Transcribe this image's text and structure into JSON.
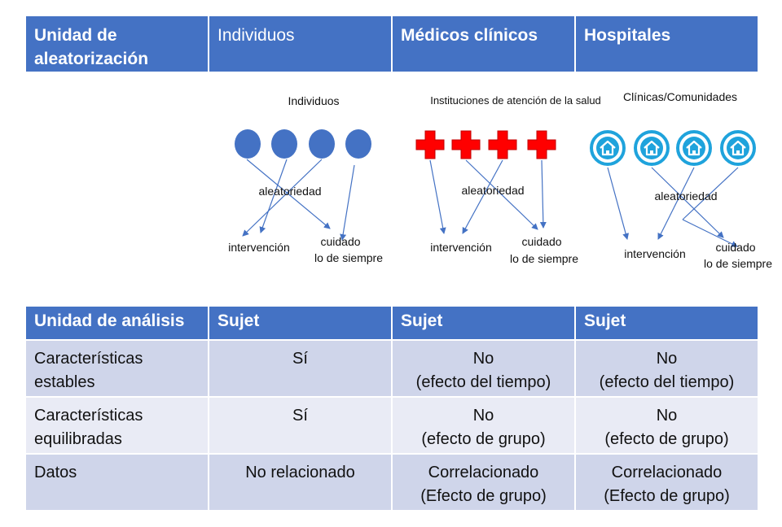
{
  "top_header": {
    "col1_lines": [
      "Unidad de",
      "aleatorización"
    ],
    "col2": "Individuos",
    "col3": "Médicos clínicos",
    "col4": "Hospitales"
  },
  "diagram": {
    "panel1": {
      "title": "Individuos",
      "randomization": "aleatoriedad",
      "intervention": "intervención",
      "usual_line1": "cuidado",
      "usual_line2": "lo de siempre"
    },
    "panel2": {
      "title": "Instituciones de atención de la salud",
      "randomization": "aleatoriedad",
      "intervention": "intervención",
      "usual_line1": "cuidado",
      "usual_line2": "lo de siempre"
    },
    "panel3": {
      "title": "Clínicas/Comunidades",
      "randomization": "aleatoriedad",
      "intervention": "intervención",
      "usual_line1": "cuidado",
      "usual_line2": "lo de siempre"
    },
    "colors": {
      "circle": "#4472c4",
      "cross": "#ff0000",
      "home": "#1fa3dc",
      "arrow": "#4472c4"
    },
    "icons": [
      "person-circle-icon",
      "red-cross-icon",
      "home-icon"
    ]
  },
  "analysis_table": {
    "headers": [
      "Unidad de análisis",
      "Sujet",
      "Sujet",
      "Sujet"
    ],
    "rows": [
      {
        "label": [
          "Características",
          "estables"
        ],
        "c1": [
          "Sí"
        ],
        "c2": [
          "No",
          "(efecto del tiempo)"
        ],
        "c3": [
          "No",
          "(efecto del tiempo)"
        ]
      },
      {
        "label": [
          "Características",
          "equilibradas"
        ],
        "c1": [
          "Sí"
        ],
        "c2": [
          "No",
          "(efecto de grupo)"
        ],
        "c3": [
          "No",
          "(efecto de grupo)"
        ]
      },
      {
        "label": [
          "Datos"
        ],
        "c1": [
          "No relacionado"
        ],
        "c2": [
          "Correlacionado",
          "(Efecto de grupo)"
        ],
        "c3": [
          "Correlacionado",
          "(Efecto de grupo)"
        ]
      }
    ]
  }
}
